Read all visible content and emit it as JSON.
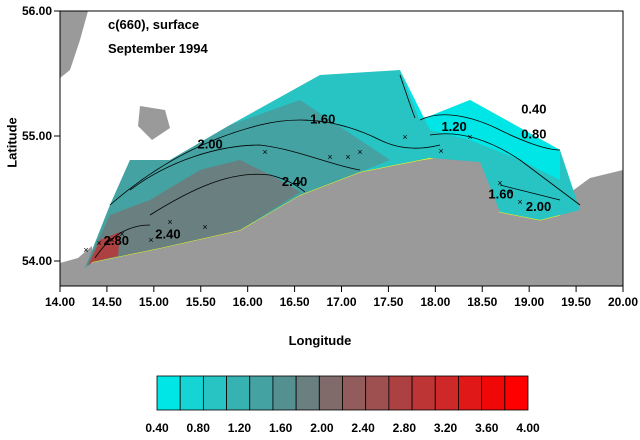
{
  "title": {
    "line1": "c(660), surface",
    "line2": "September 1994"
  },
  "axes": {
    "xlabel": "Longitude",
    "ylabel": "Latitude",
    "x_ticks": [
      "14.00",
      "14.50",
      "15.00",
      "15.50",
      "16.00",
      "16.50",
      "17.00",
      "17.50",
      "18.00",
      "18.50",
      "19.00",
      "19.50",
      "20.00"
    ],
    "y_ticks": [
      "54.00",
      "55.00",
      "56.00"
    ],
    "xlim": [
      14.0,
      20.0
    ],
    "ylim": [
      53.8,
      56.0
    ]
  },
  "contour_labels": [
    {
      "text": "0.40",
      "lon": 19.05,
      "lat": 55.18
    },
    {
      "text": "0.80",
      "lon": 19.05,
      "lat": 54.98
    },
    {
      "text": "1.20",
      "lon": 18.2,
      "lat": 55.04
    },
    {
      "text": "1.60",
      "lon": 16.8,
      "lat": 55.1
    },
    {
      "text": "1.60",
      "lon": 18.7,
      "lat": 54.5
    },
    {
      "text": "2.00",
      "lon": 15.6,
      "lat": 54.9
    },
    {
      "text": "2.00",
      "lon": 19.1,
      "lat": 54.4
    },
    {
      "text": "2.40",
      "lon": 15.15,
      "lat": 54.18
    },
    {
      "text": "2.40",
      "lon": 16.5,
      "lat": 54.6
    },
    {
      "text": "2.80",
      "lon": 14.6,
      "lat": 54.13
    }
  ],
  "legend": {
    "labels": [
      "0.40",
      "0.80",
      "1.20",
      "1.60",
      "2.00",
      "2.40",
      "2.80",
      "3.20",
      "3.60",
      "4.00"
    ],
    "colors": [
      "#00e5e5",
      "#14d4d4",
      "#28c3c3",
      "#36b2b2",
      "#44a2a2",
      "#559090",
      "#6a7f7f",
      "#806a6a",
      "#925c5c",
      "#9e5050",
      "#ad4040",
      "#bd3535",
      "#ce2828",
      "#e01818",
      "#f00808",
      "#ff0000"
    ]
  },
  "colors": {
    "land": "#9a9a9a",
    "coast": "#ffff00"
  }
}
